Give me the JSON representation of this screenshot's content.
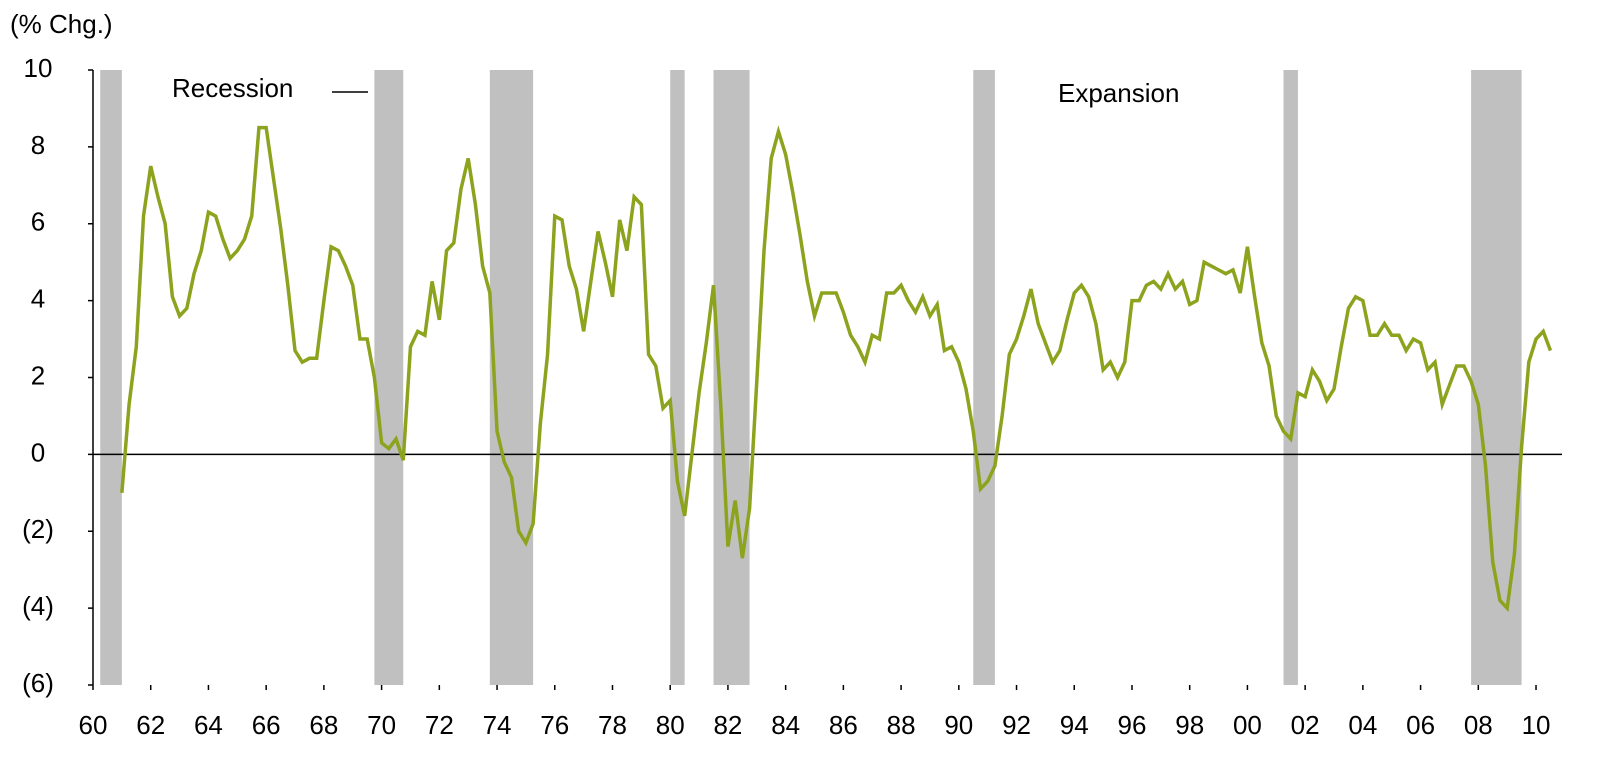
{
  "chart_data": {
    "type": "line",
    "unit_label": "(% Chg.)",
    "annotations": [
      "Recession",
      "Expansion"
    ],
    "recession_color": "#c0c0c0",
    "recessions": [
      [
        1960.25,
        1961.0
      ],
      [
        1969.75,
        1970.75
      ],
      [
        1973.75,
        1975.25
      ],
      [
        1980.0,
        1980.5
      ],
      [
        1981.5,
        1982.75
      ],
      [
        1990.5,
        1991.25
      ],
      [
        2001.25,
        2001.75
      ],
      [
        2007.75,
        2009.5
      ]
    ],
    "xlim": [
      1960,
      2010.9
    ],
    "xticks": [
      {
        "value": 1960,
        "label": "60"
      },
      {
        "value": 1962,
        "label": "62"
      },
      {
        "value": 1964,
        "label": "64"
      },
      {
        "value": 1966,
        "label": "66"
      },
      {
        "value": 1968,
        "label": "68"
      },
      {
        "value": 1970,
        "label": "70"
      },
      {
        "value": 1972,
        "label": "72"
      },
      {
        "value": 1974,
        "label": "74"
      },
      {
        "value": 1976,
        "label": "76"
      },
      {
        "value": 1978,
        "label": "78"
      },
      {
        "value": 1980,
        "label": "80"
      },
      {
        "value": 1982,
        "label": "82"
      },
      {
        "value": 1984,
        "label": "84"
      },
      {
        "value": 1986,
        "label": "86"
      },
      {
        "value": 1988,
        "label": "88"
      },
      {
        "value": 1990,
        "label": "90"
      },
      {
        "value": 1992,
        "label": "92"
      },
      {
        "value": 1994,
        "label": "94"
      },
      {
        "value": 1996,
        "label": "96"
      },
      {
        "value": 1998,
        "label": "98"
      },
      {
        "value": 2000,
        "label": "00"
      },
      {
        "value": 2002,
        "label": "02"
      },
      {
        "value": 2004,
        "label": "04"
      },
      {
        "value": 2006,
        "label": "06"
      },
      {
        "value": 2008,
        "label": "08"
      },
      {
        "value": 2010,
        "label": "10"
      }
    ],
    "ylim": [
      -6,
      10
    ],
    "yticks": [
      10,
      8,
      6,
      4,
      2,
      0,
      {
        "value": -2,
        "label": "(2)"
      },
      {
        "value": -4,
        "label": "(4)"
      },
      {
        "value": -6,
        "label": "(6)"
      }
    ],
    "x": [
      1961,
      1961.25,
      1961.5,
      1961.75,
      1962,
      1962.25,
      1962.5,
      1962.75,
      1963,
      1963.25,
      1963.5,
      1963.75,
      1964,
      1964.25,
      1964.5,
      1964.75,
      1965,
      1965.25,
      1965.5,
      1965.75,
      1966,
      1966.25,
      1966.5,
      1966.75,
      1967,
      1967.25,
      1967.5,
      1967.75,
      1968,
      1968.25,
      1968.5,
      1968.75,
      1969,
      1969.25,
      1969.5,
      1969.75,
      1970,
      1970.25,
      1970.5,
      1970.75,
      1971,
      1971.25,
      1971.5,
      1971.75,
      1972,
      1972.25,
      1972.5,
      1972.75,
      1973,
      1973.25,
      1973.5,
      1973.75,
      1974,
      1974.25,
      1974.5,
      1974.75,
      1975,
      1975.25,
      1975.5,
      1975.75,
      1976,
      1976.25,
      1976.5,
      1976.75,
      1977,
      1977.25,
      1977.5,
      1977.75,
      1978,
      1978.25,
      1978.5,
      1978.75,
      1979,
      1979.25,
      1979.5,
      1979.75,
      1980,
      1980.25,
      1980.5,
      1980.75,
      1981,
      1981.25,
      1981.5,
      1981.75,
      1982,
      1982.25,
      1982.5,
      1982.75,
      1983,
      1983.25,
      1983.5,
      1983.75,
      1984,
      1984.25,
      1984.5,
      1984.75,
      1985,
      1985.25,
      1985.5,
      1985.75,
      1986,
      1986.25,
      1986.5,
      1986.75,
      1987,
      1987.25,
      1987.5,
      1987.75,
      1988,
      1988.25,
      1988.5,
      1988.75,
      1989,
      1989.25,
      1989.5,
      1989.75,
      1990,
      1990.25,
      1990.5,
      1990.75,
      1991,
      1991.25,
      1991.5,
      1991.75,
      1992,
      1992.25,
      1992.5,
      1992.75,
      1993,
      1993.25,
      1993.5,
      1993.75,
      1994,
      1994.25,
      1994.5,
      1994.75,
      1995,
      1995.25,
      1995.5,
      1995.75,
      1996,
      1996.25,
      1996.5,
      1996.75,
      1997,
      1997.25,
      1997.5,
      1997.75,
      1998,
      1998.25,
      1998.5,
      1998.75,
      1999,
      1999.25,
      1999.5,
      1999.75,
      2000,
      2000.25,
      2000.5,
      2000.75,
      2001,
      2001.25,
      2001.5,
      2001.75,
      2002,
      2002.25,
      2002.5,
      2002.75,
      2003,
      2003.25,
      2003.5,
      2003.75,
      2004,
      2004.25,
      2004.5,
      2004.75,
      2005,
      2005.25,
      2005.5,
      2005.75,
      2006,
      2006.25,
      2006.5,
      2006.75,
      2007,
      2007.25,
      2007.5,
      2007.75,
      2008,
      2008.25,
      2008.5,
      2008.75,
      2009,
      2009.25,
      2009.5,
      2009.75,
      2010,
      2010.25,
      2010.5
    ],
    "series": [
      {
        "color": "#8ca31e",
        "values": [
          -1.0,
          1.3,
          2.8,
          6.2,
          7.5,
          6.7,
          6.0,
          4.1,
          3.6,
          3.8,
          4.7,
          5.3,
          6.3,
          6.2,
          5.6,
          5.1,
          5.3,
          5.6,
          6.2,
          8.5,
          8.5,
          7.2,
          5.9,
          4.4,
          2.7,
          2.4,
          2.5,
          2.5,
          4.0,
          5.4,
          5.3,
          4.9,
          4.4,
          3.0,
          3.0,
          2.0,
          0.3,
          0.15,
          0.4,
          -0.15,
          2.8,
          3.2,
          3.1,
          4.5,
          3.5,
          5.3,
          5.5,
          6.9,
          7.7,
          6.5,
          4.9,
          4.2,
          0.6,
          -0.2,
          -0.6,
          -2.0,
          -2.3,
          -1.8,
          0.8,
          2.6,
          6.2,
          6.1,
          4.9,
          4.3,
          3.2,
          4.5,
          5.8,
          5.0,
          4.1,
          6.1,
          5.3,
          6.7,
          6.5,
          2.6,
          2.3,
          1.2,
          1.4,
          -0.7,
          -1.6,
          0.0,
          1.6,
          2.9,
          4.4,
          1.3,
          -2.4,
          -1.2,
          -2.7,
          -1.4,
          1.9,
          5.3,
          7.7,
          8.4,
          7.8,
          6.8,
          5.7,
          4.5,
          3.6,
          4.2,
          4.2,
          4.2,
          3.7,
          3.1,
          2.8,
          2.4,
          3.1,
          3.0,
          4.2,
          4.2,
          4.4,
          4.0,
          3.7,
          4.1,
          3.6,
          3.9,
          2.7,
          2.8,
          2.4,
          1.7,
          0.6,
          -0.9,
          -0.7,
          -0.3,
          1.0,
          2.6,
          3.0,
          3.6,
          4.3,
          3.4,
          2.9,
          2.4,
          2.7,
          3.5,
          4.2,
          4.4,
          4.1,
          3.4,
          2.2,
          2.4,
          2.0,
          2.4,
          4.0,
          4.0,
          4.4,
          4.5,
          4.3,
          4.7,
          4.3,
          4.5,
          3.9,
          4.0,
          5.0,
          4.9,
          4.8,
          4.7,
          4.8,
          4.2,
          5.4,
          4.1,
          2.9,
          2.3,
          1.0,
          0.6,
          0.4,
          1.6,
          1.5,
          2.2,
          1.9,
          1.4,
          1.7,
          2.8,
          3.8,
          4.1,
          4.0,
          3.1,
          3.1,
          3.4,
          3.1,
          3.1,
          2.7,
          3.0,
          2.9,
          2.2,
          2.4,
          1.3,
          1.8,
          2.3,
          2.3,
          1.9,
          1.3,
          -0.3,
          -2.8,
          -3.8,
          -4.0,
          -2.6,
          0.2,
          2.4,
          3.0,
          3.2,
          2.7
        ]
      }
    ]
  }
}
